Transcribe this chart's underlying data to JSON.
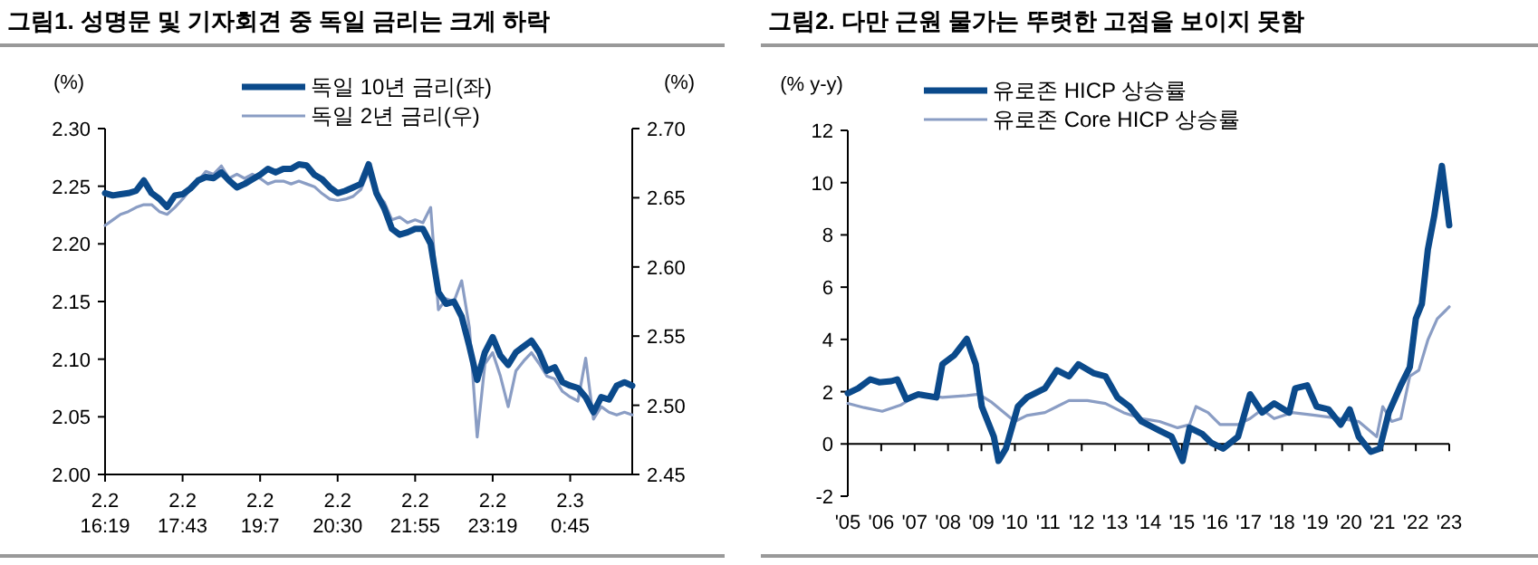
{
  "chart_data": [
    {
      "type": "line",
      "title": "그림1. 성명문 및 기자회견 중 독일 금리는 크게 하락",
      "ylabel": "(%)",
      "y2label": "(%)",
      "categories": [
        "2.2 16:19",
        null,
        null,
        null,
        null,
        null,
        null,
        null,
        null,
        null,
        "2.2 17:43",
        null,
        null,
        null,
        null,
        null,
        null,
        null,
        null,
        null,
        "2.2 19:7",
        null,
        null,
        null,
        null,
        null,
        null,
        null,
        null,
        null,
        "2.2 20:30",
        null,
        null,
        null,
        null,
        null,
        null,
        null,
        null,
        null,
        "2.2 21:55",
        null,
        null,
        null,
        null,
        null,
        null,
        null,
        null,
        null,
        "2.2 23:19",
        null,
        null,
        null,
        null,
        null,
        null,
        null,
        null,
        null,
        "2.3 0:45",
        null,
        null,
        null,
        null,
        null,
        null,
        null,
        null
      ],
      "ylim": [
        2.0,
        2.3
      ],
      "yticks": [
        {
          "value": 2.0,
          "label": "2.00"
        },
        {
          "value": 2.05,
          "label": "2.05"
        },
        {
          "value": 2.1,
          "label": "2.10"
        },
        {
          "value": 2.15,
          "label": "2.15"
        },
        {
          "value": 2.2,
          "label": "2.20"
        },
        {
          "value": 2.25,
          "label": "2.25"
        },
        {
          "value": 2.3,
          "label": "2.30"
        }
      ],
      "y2lim": [
        2.45,
        2.7
      ],
      "y2ticks": [
        {
          "value": 2.45,
          "label": "2.45"
        },
        {
          "value": 2.5,
          "label": "2.50"
        },
        {
          "value": 2.55,
          "label": "2.55"
        },
        {
          "value": 2.6,
          "label": "2.60"
        },
        {
          "value": 2.65,
          "label": "2.65"
        },
        {
          "value": 2.7,
          "label": "2.70"
        }
      ],
      "legend": "top",
      "series": [
        {
          "name": "독일 10년 금리(좌)",
          "color": "#0b4a8b",
          "values": [
            2.244,
            2.242,
            2.243,
            2.244,
            2.246,
            2.255,
            2.244,
            2.239,
            2.232,
            2.242,
            2.243,
            2.248,
            2.255,
            2.258,
            2.257,
            2.262,
            2.255,
            2.249,
            2.252,
            2.256,
            2.26,
            2.265,
            2.262,
            2.265,
            2.265,
            2.269,
            2.268,
            2.26,
            2.256,
            2.249,
            2.244,
            2.246,
            2.249,
            2.252,
            2.269,
            2.244,
            2.231,
            2.213,
            2.208,
            2.21,
            2.213,
            2.213,
            2.2,
            2.158,
            2.148,
            2.15,
            2.137,
            2.111,
            2.082,
            2.106,
            2.119,
            2.103,
            2.095,
            2.106,
            2.111,
            2.116,
            2.106,
            2.09,
            2.093,
            2.08,
            2.077,
            2.075,
            2.067,
            2.054,
            2.067,
            2.065,
            2.077,
            2.08,
            2.077
          ]
        },
        {
          "name": "독일 2년 금리(우)",
          "color": "#8a9dc4",
          "axis": "y2",
          "values": [
            2.63,
            2.634,
            2.638,
            2.64,
            2.643,
            2.645,
            2.645,
            2.64,
            2.638,
            2.643,
            2.649,
            2.656,
            2.662,
            2.669,
            2.667,
            2.673,
            2.664,
            2.667,
            2.664,
            2.667,
            2.664,
            2.66,
            2.662,
            2.662,
            2.66,
            2.662,
            2.66,
            2.658,
            2.653,
            2.649,
            2.648,
            2.649,
            2.651,
            2.656,
            2.669,
            2.653,
            2.647,
            2.634,
            2.636,
            2.632,
            2.634,
            2.632,
            2.643,
            2.569,
            2.577,
            2.575,
            2.59,
            2.556,
            2.477,
            2.53,
            2.538,
            2.521,
            2.499,
            2.525,
            2.532,
            2.538,
            2.53,
            2.521,
            2.519,
            2.51,
            2.506,
            2.503,
            2.534,
            2.49,
            2.499,
            2.495,
            2.493,
            2.495,
            2.493
          ]
        }
      ]
    },
    {
      "type": "line",
      "title": "그림2. 다만 근원 물가는 뚜렷한 고점을 보이지 못함",
      "ylabel": "(% y-y)",
      "xlim": [
        2005,
        2023
      ],
      "xticks": [
        {
          "value": 2005,
          "label": "'05"
        },
        {
          "value": 2006,
          "label": "'06"
        },
        {
          "value": 2007,
          "label": "'07"
        },
        {
          "value": 2008,
          "label": "'08"
        },
        {
          "value": 2009,
          "label": "'09"
        },
        {
          "value": 2010,
          "label": "'10"
        },
        {
          "value": 2011,
          "label": "'11"
        },
        {
          "value": 2012,
          "label": "'12"
        },
        {
          "value": 2013,
          "label": "'13"
        },
        {
          "value": 2014,
          "label": "'14"
        },
        {
          "value": 2015,
          "label": "'15"
        },
        {
          "value": 2016,
          "label": "'16"
        },
        {
          "value": 2017,
          "label": "'17"
        },
        {
          "value": 2018,
          "label": "'18"
        },
        {
          "value": 2019,
          "label": "'19"
        },
        {
          "value": 2020,
          "label": "'20"
        },
        {
          "value": 2021,
          "label": "'21"
        },
        {
          "value": 2022,
          "label": "'22"
        },
        {
          "value": 2023,
          "label": "'23"
        }
      ],
      "ylim": [
        -2,
        12
      ],
      "yticks": [
        -2,
        0,
        2,
        4,
        6,
        8,
        10,
        12
      ],
      "legend": "top left",
      "series": [
        {
          "name": "유로존 HICP 상승률",
          "color": "#0b4a8b",
          "x": [
            2005.0,
            2005.31,
            2005.67,
            2005.94,
            2006.3,
            2006.48,
            2006.75,
            2007.11,
            2007.65,
            2007.83,
            2008.19,
            2008.56,
            2008.83,
            2009.01,
            2009.37,
            2009.51,
            2009.73,
            2010.09,
            2010.36,
            2010.9,
            2011.26,
            2011.62,
            2011.9,
            2012.35,
            2012.71,
            2013.07,
            2013.43,
            2013.79,
            2014.33,
            2014.69,
            2015.02,
            2015.23,
            2015.6,
            2015.87,
            2016.23,
            2016.68,
            2017.04,
            2017.4,
            2017.76,
            2018.21,
            2018.39,
            2018.75,
            2019.03,
            2019.39,
            2019.75,
            2020.02,
            2020.29,
            2020.65,
            2020.92,
            2021.19,
            2021.55,
            2021.82,
            2022.0,
            2022.18,
            2022.36,
            2022.55,
            2022.78,
            2023.0
          ],
          "values": [
            1.94,
            2.13,
            2.47,
            2.36,
            2.4,
            2.47,
            1.71,
            1.9,
            1.78,
            3.05,
            3.4,
            4.02,
            3.05,
            1.43,
            0.28,
            -0.65,
            -0.18,
            1.43,
            1.78,
            2.13,
            2.82,
            2.59,
            3.05,
            2.71,
            2.59,
            1.78,
            1.43,
            0.86,
            0.51,
            0.28,
            -0.65,
            0.62,
            0.39,
            0.05,
            -0.18,
            0.28,
            1.9,
            1.2,
            1.55,
            1.2,
            2.13,
            2.24,
            1.43,
            1.32,
            0.74,
            1.32,
            0.28,
            -0.3,
            -0.18,
            1.2,
            2.24,
            2.94,
            4.79,
            5.36,
            7.44,
            8.72,
            10.64,
            8.37
          ]
        },
        {
          "name": "유로존 Core HICP 상승률",
          "color": "#8a9dc4",
          "x": [
            2005.0,
            2005.49,
            2006.03,
            2006.57,
            2007.11,
            2007.83,
            2008.56,
            2008.92,
            2009.28,
            2010.0,
            2010.36,
            2010.9,
            2011.26,
            2011.62,
            2012.17,
            2012.71,
            2013.25,
            2013.79,
            2014.33,
            2014.87,
            2015.23,
            2015.42,
            2015.78,
            2016.14,
            2016.68,
            2017.04,
            2017.4,
            2017.76,
            2018.3,
            2019.03,
            2019.75,
            2020.29,
            2020.83,
            2021.01,
            2021.28,
            2021.55,
            2021.82,
            2022.09,
            2022.36,
            2022.64,
            2022.91,
            2023.0
          ],
          "values": [
            1.55,
            1.39,
            1.25,
            1.48,
            1.9,
            1.78,
            1.85,
            1.9,
            1.62,
            0.86,
            1.09,
            1.2,
            1.43,
            1.66,
            1.66,
            1.55,
            1.2,
            0.97,
            0.86,
            0.62,
            0.74,
            1.43,
            1.2,
            0.74,
            0.74,
            0.97,
            1.32,
            0.97,
            1.2,
            1.09,
            0.97,
            0.86,
            0.28,
            1.43,
            0.86,
            0.97,
            2.59,
            2.82,
            3.98,
            4.79,
            5.13,
            5.25
          ]
        }
      ]
    }
  ]
}
